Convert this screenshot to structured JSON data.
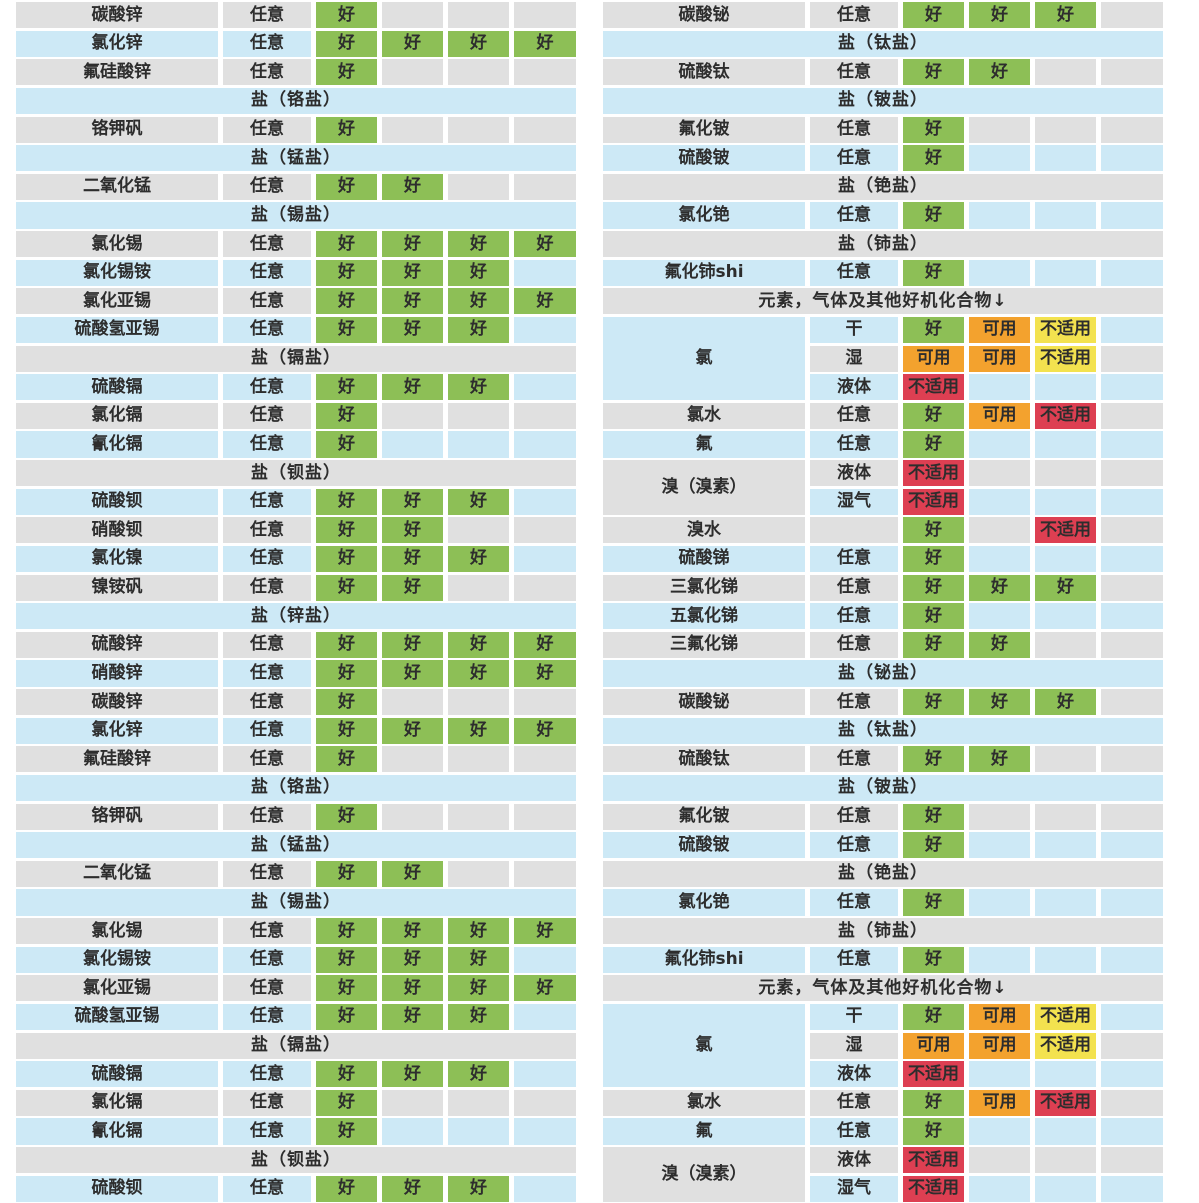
{
  "palette": {
    "green": "#8dbf56",
    "orange": "#f3a22e",
    "yellow": "#f3e24f",
    "red": "#dd3f52",
    "gray_row": "#e0e0e0",
    "blue_row": "#cde9f6",
    "text": "#2d2d2d",
    "page_bg": "#ffffff"
  },
  "legend": {
    "good": "好",
    "usable": "可用",
    "unsuitable": "不适用"
  },
  "condition_labels": {
    "any": "任意",
    "dry": "干",
    "wet": "湿",
    "liquid": "液体",
    "moist_gas": "湿气"
  },
  "left_table": {
    "rows": [
      {
        "type": "data",
        "name": "碳酸锌",
        "condition": "任意",
        "ratings": [
          "good",
          null,
          null,
          null
        ]
      },
      {
        "type": "data",
        "name": "氯化锌",
        "condition": "任意",
        "ratings": [
          "good",
          "good",
          "good",
          "good"
        ]
      },
      {
        "type": "data",
        "name": "氟硅酸锌",
        "condition": "任意",
        "ratings": [
          "good",
          null,
          null,
          null
        ]
      },
      {
        "type": "section",
        "label": "盐（铬盐）"
      },
      {
        "type": "data",
        "name": "铬钾矾",
        "condition": "任意",
        "ratings": [
          "good",
          null,
          null,
          null
        ]
      },
      {
        "type": "section",
        "label": "盐（锰盐）"
      },
      {
        "type": "data",
        "name": "二氧化锰",
        "condition": "任意",
        "ratings": [
          "good",
          "good",
          null,
          null
        ]
      },
      {
        "type": "section",
        "label": "盐（锡盐）"
      },
      {
        "type": "data",
        "name": "氯化锡",
        "condition": "任意",
        "ratings": [
          "good",
          "good",
          "good",
          "good"
        ]
      },
      {
        "type": "data",
        "name": "氯化锡铵",
        "condition": "任意",
        "ratings": [
          "good",
          "good",
          "good",
          null
        ]
      },
      {
        "type": "data",
        "name": "氯化亚锡",
        "condition": "任意",
        "ratings": [
          "good",
          "good",
          "good",
          "good"
        ]
      },
      {
        "type": "data",
        "name": "硫酸氢亚锡",
        "condition": "任意",
        "ratings": [
          "good",
          "good",
          "good",
          null
        ]
      },
      {
        "type": "section",
        "label": "盐（镉盐）"
      },
      {
        "type": "data",
        "name": "硫酸镉",
        "condition": "任意",
        "ratings": [
          "good",
          "good",
          "good",
          null
        ]
      },
      {
        "type": "data",
        "name": "氯化镉",
        "condition": "任意",
        "ratings": [
          "good",
          null,
          null,
          null
        ]
      },
      {
        "type": "data",
        "name": "氰化镉",
        "condition": "任意",
        "ratings": [
          "good",
          null,
          null,
          null
        ]
      },
      {
        "type": "section",
        "label": "盐（钡盐）"
      },
      {
        "type": "data",
        "name": "硫酸钡",
        "condition": "任意",
        "ratings": [
          "good",
          "good",
          "good",
          null
        ]
      },
      {
        "type": "data",
        "name": "硝酸钡",
        "condition": "任意",
        "ratings": [
          "good",
          "good",
          null,
          null
        ]
      },
      {
        "type": "data",
        "name": "氯化镍",
        "condition": "任意",
        "ratings": [
          "good",
          "good",
          "good",
          null
        ]
      },
      {
        "type": "data",
        "name": "镍铵矾",
        "condition": "任意",
        "ratings": [
          "good",
          "good",
          null,
          null
        ]
      },
      {
        "type": "section",
        "label": "盐（锌盐）"
      },
      {
        "type": "data",
        "name": "硫酸锌",
        "condition": "任意",
        "ratings": [
          "good",
          "good",
          "good",
          "good"
        ]
      },
      {
        "type": "data",
        "name": "硝酸锌",
        "condition": "任意",
        "ratings": [
          "good",
          "good",
          "good",
          "good"
        ]
      },
      {
        "type": "data",
        "name": "碳酸锌",
        "condition": "任意",
        "ratings": [
          "good",
          null,
          null,
          null
        ]
      },
      {
        "type": "data",
        "name": "氯化锌",
        "condition": "任意",
        "ratings": [
          "good",
          "good",
          "good",
          "good"
        ]
      },
      {
        "type": "data",
        "name": "氟硅酸锌",
        "condition": "任意",
        "ratings": [
          "good",
          null,
          null,
          null
        ]
      },
      {
        "type": "section",
        "label": "盐（铬盐）"
      },
      {
        "type": "data",
        "name": "铬钾矾",
        "condition": "任意",
        "ratings": [
          "good",
          null,
          null,
          null
        ]
      },
      {
        "type": "section",
        "label": "盐（锰盐）"
      },
      {
        "type": "data",
        "name": "二氧化锰",
        "condition": "任意",
        "ratings": [
          "good",
          "good",
          null,
          null
        ]
      },
      {
        "type": "section",
        "label": "盐（锡盐）"
      },
      {
        "type": "data",
        "name": "氯化锡",
        "condition": "任意",
        "ratings": [
          "good",
          "good",
          "good",
          "good"
        ]
      },
      {
        "type": "data",
        "name": "氯化锡铵",
        "condition": "任意",
        "ratings": [
          "good",
          "good",
          "good",
          null
        ]
      },
      {
        "type": "data",
        "name": "氯化亚锡",
        "condition": "任意",
        "ratings": [
          "good",
          "good",
          "good",
          "good"
        ]
      },
      {
        "type": "data",
        "name": "硫酸氢亚锡",
        "condition": "任意",
        "ratings": [
          "good",
          "good",
          "good",
          null
        ]
      },
      {
        "type": "section",
        "label": "盐（镉盐）"
      },
      {
        "type": "data",
        "name": "硫酸镉",
        "condition": "任意",
        "ratings": [
          "good",
          "good",
          "good",
          null
        ]
      },
      {
        "type": "data",
        "name": "氯化镉",
        "condition": "任意",
        "ratings": [
          "good",
          null,
          null,
          null
        ]
      },
      {
        "type": "data",
        "name": "氰化镉",
        "condition": "任意",
        "ratings": [
          "good",
          null,
          null,
          null
        ]
      },
      {
        "type": "section",
        "label": "盐（钡盐）"
      },
      {
        "type": "data",
        "name": "硫酸钡",
        "condition": "任意",
        "ratings": [
          "good",
          "good",
          "good",
          null
        ]
      }
    ]
  },
  "right_table": {
    "rows": [
      {
        "type": "data",
        "name": "碳酸铋",
        "condition": "任意",
        "ratings": [
          "good",
          "good",
          "good",
          null
        ]
      },
      {
        "type": "section",
        "label": "盐（钛盐）"
      },
      {
        "type": "data",
        "name": "硫酸钛",
        "condition": "任意",
        "ratings": [
          "good",
          "good",
          null,
          null
        ]
      },
      {
        "type": "section",
        "label": "盐（铍盐）"
      },
      {
        "type": "data",
        "name": "氟化铍",
        "condition": "任意",
        "ratings": [
          "good",
          null,
          null,
          null
        ]
      },
      {
        "type": "data",
        "name": "硫酸铍",
        "condition": "任意",
        "ratings": [
          "good",
          null,
          null,
          null
        ]
      },
      {
        "type": "section",
        "label": "盐（铯盐）"
      },
      {
        "type": "data",
        "name": "氯化铯",
        "condition": "任意",
        "ratings": [
          "good",
          null,
          null,
          null
        ]
      },
      {
        "type": "section",
        "label": "盐（铈盐）"
      },
      {
        "type": "data",
        "name": "氟化铈shi",
        "condition": "任意",
        "ratings": [
          "good",
          null,
          null,
          null
        ]
      },
      {
        "type": "section",
        "label": "元素，气体及其他好机化合物↓"
      },
      {
        "type": "data",
        "name": "氯",
        "name_span": 3,
        "condition": "干",
        "ratings": [
          "good",
          "usable",
          "na_yellow",
          null
        ]
      },
      {
        "type": "data",
        "cont": true,
        "condition": "湿",
        "ratings": [
          "usable",
          "usable",
          "na_yellow",
          null
        ]
      },
      {
        "type": "data",
        "cont": true,
        "condition": "液体",
        "ratings": [
          "na_red",
          null,
          null,
          null
        ]
      },
      {
        "type": "data",
        "name": "氯水",
        "condition": "任意",
        "ratings": [
          "good",
          "usable",
          "na_red",
          null
        ]
      },
      {
        "type": "data",
        "name": "氟",
        "condition": "任意",
        "ratings": [
          "good",
          null,
          null,
          null
        ]
      },
      {
        "type": "data",
        "name": "溴（溴素）",
        "name_span": 2,
        "condition": "液体",
        "ratings": [
          "na_red",
          null,
          null,
          null
        ]
      },
      {
        "type": "data",
        "cont": true,
        "condition": "湿气",
        "ratings": [
          "na_red",
          null,
          null,
          null
        ]
      },
      {
        "type": "data",
        "name": "溴水",
        "condition": "",
        "ratings": [
          "good",
          null,
          "na_red",
          null
        ]
      },
      {
        "type": "data",
        "name": "硫酸锑",
        "condition": "任意",
        "ratings": [
          "good",
          null,
          null,
          null
        ]
      },
      {
        "type": "data",
        "name": "三氯化锑",
        "condition": "任意",
        "ratings": [
          "good",
          "good",
          "good",
          null
        ]
      },
      {
        "type": "data",
        "name": "五氯化锑",
        "condition": "任意",
        "ratings": [
          "good",
          null,
          null,
          null
        ]
      },
      {
        "type": "data",
        "name": "三氟化锑",
        "condition": "任意",
        "ratings": [
          "good",
          "good",
          null,
          null
        ]
      },
      {
        "type": "section",
        "label": "盐（铋盐）"
      },
      {
        "type": "data",
        "name": "碳酸铋",
        "condition": "任意",
        "ratings": [
          "good",
          "good",
          "good",
          null
        ]
      },
      {
        "type": "section",
        "label": "盐（钛盐）"
      },
      {
        "type": "data",
        "name": "硫酸钛",
        "condition": "任意",
        "ratings": [
          "good",
          "good",
          null,
          null
        ]
      },
      {
        "type": "section",
        "label": "盐（铍盐）"
      },
      {
        "type": "data",
        "name": "氟化铍",
        "condition": "任意",
        "ratings": [
          "good",
          null,
          null,
          null
        ]
      },
      {
        "type": "data",
        "name": "硫酸铍",
        "condition": "任意",
        "ratings": [
          "good",
          null,
          null,
          null
        ]
      },
      {
        "type": "section",
        "label": "盐（铯盐）"
      },
      {
        "type": "data",
        "name": "氯化铯",
        "condition": "任意",
        "ratings": [
          "good",
          null,
          null,
          null
        ]
      },
      {
        "type": "section",
        "label": "盐（铈盐）"
      },
      {
        "type": "data",
        "name": "氟化铈shi",
        "condition": "任意",
        "ratings": [
          "good",
          null,
          null,
          null
        ]
      },
      {
        "type": "section",
        "label": "元素，气体及其他好机化合物↓"
      },
      {
        "type": "data",
        "name": "氯",
        "name_span": 3,
        "condition": "干",
        "ratings": [
          "good",
          "usable",
          "na_yellow",
          null
        ]
      },
      {
        "type": "data",
        "cont": true,
        "condition": "湿",
        "ratings": [
          "usable",
          "usable",
          "na_yellow",
          null
        ]
      },
      {
        "type": "data",
        "cont": true,
        "condition": "液体",
        "ratings": [
          "na_red",
          null,
          null,
          null
        ]
      },
      {
        "type": "data",
        "name": "氯水",
        "condition": "任意",
        "ratings": [
          "good",
          "usable",
          "na_red",
          null
        ]
      },
      {
        "type": "data",
        "name": "氟",
        "condition": "任意",
        "ratings": [
          "good",
          null,
          null,
          null
        ]
      },
      {
        "type": "data",
        "name": "溴（溴素）",
        "name_span": 2,
        "condition": "液体",
        "ratings": [
          "na_red",
          null,
          null,
          null
        ]
      },
      {
        "type": "data",
        "cont": true,
        "condition": "湿气",
        "ratings": [
          "na_red",
          null,
          null,
          null
        ]
      }
    ]
  }
}
